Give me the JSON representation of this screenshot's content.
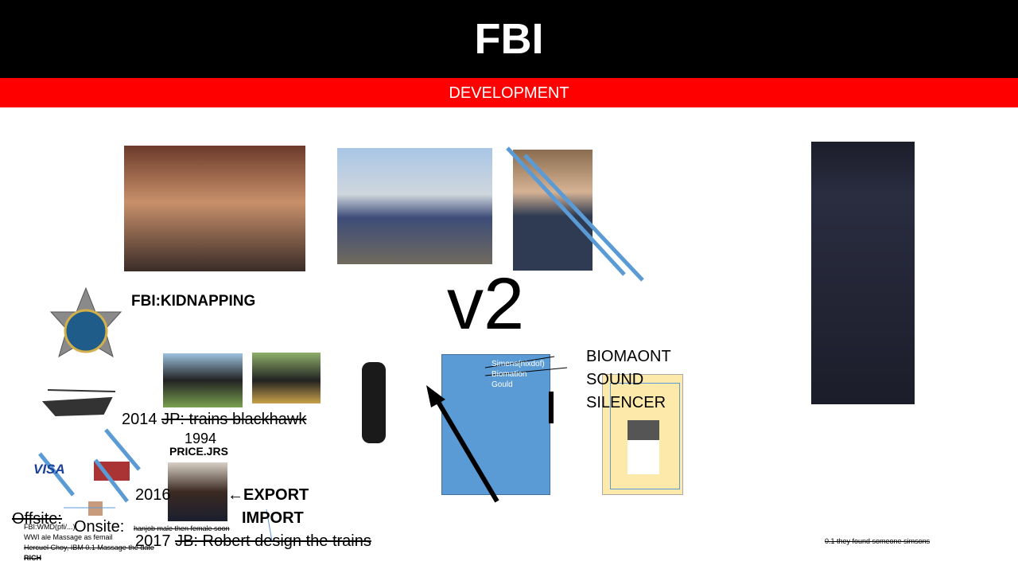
{
  "header": {
    "title": "FBI",
    "subtitle": "DEVELOPMENT"
  },
  "labels": {
    "kidnapping": "FBI:KIDNAPPING",
    "version": "v2",
    "visa": "VISA",
    "price": "PRICE.JRS",
    "biomaont": [
      "BIOMAONT",
      "SOUND",
      "SILENCER"
    ],
    "box_notes": [
      "Simens(nixdof)",
      "Biomation",
      "Gould"
    ],
    "line_2014": {
      "year": "2014",
      "struck": "JP: trains blackhawk"
    },
    "year_1994": "1994",
    "year_2016": "2016",
    "export": "EXPORT",
    "import": "IMPORT",
    "offsite": "Offsite:",
    "onsite": "Onsite:",
    "small_notes": [
      "FBI:WMD(pfi/...)",
      "WWI  ale Massage as femail",
      "Hercuel Choy, IBM  0.1 Massage the date",
      "RICH"
    ],
    "hanjob": "hanjob male then female soon",
    "line_2017": {
      "year": "2017",
      "struck": "JB: Robert design the trains"
    },
    "simsons": "0.1 they found someone simsons"
  }
}
